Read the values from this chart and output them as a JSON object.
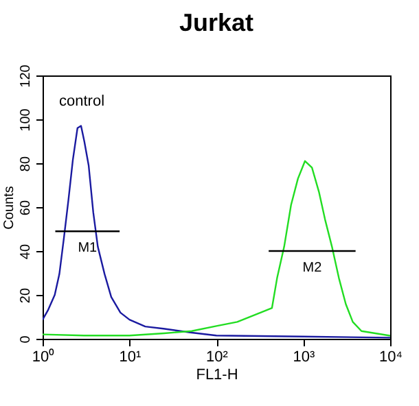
{
  "chart_data": {
    "type": "line",
    "title": "Jurkat",
    "xlabel": "FL1-H",
    "ylabel": "Counts",
    "log": "x",
    "grid": false,
    "xlim": [
      1,
      10000
    ],
    "ylim": [
      0,
      120
    ],
    "xticks": [
      {
        "value": 1,
        "label": "10⁰"
      },
      {
        "value": 10,
        "label": "10¹"
      },
      {
        "value": 100,
        "label": "10²"
      },
      {
        "value": 1000,
        "label": "10³"
      },
      {
        "value": 10000,
        "label": "10⁴"
      }
    ],
    "yticks": [
      0,
      20,
      40,
      60,
      80,
      100,
      120
    ],
    "series": [
      {
        "color": "#1a1aa0",
        "x": [
          1,
          1.15,
          1.38,
          1.56,
          1.76,
          1.98,
          2.23,
          2.52,
          2.77,
          3.02,
          3.39,
          3.83,
          4.32,
          5.17,
          6.17,
          7.87,
          10,
          15.2,
          24.6,
          50,
          100,
          1000,
          10000
        ],
        "values": [
          8.7,
          12.9,
          20,
          29.5,
          46,
          63,
          81.5,
          96,
          97,
          90,
          79,
          57.6,
          42,
          29.5,
          19,
          11.9,
          8.7,
          5.6,
          4.6,
          2.9,
          1.5,
          1,
          0.5
        ]
      },
      {
        "color": "#22dd22",
        "x": [
          1,
          3,
          10,
          25,
          52,
          100,
          174,
          325,
          436,
          500,
          603,
          724,
          869,
          1047,
          1259,
          1514,
          1778,
          2138,
          2570,
          3090,
          3715,
          4677,
          10000
        ],
        "values": [
          2,
          1.5,
          1.5,
          2.5,
          3.5,
          5.8,
          7.7,
          12,
          14,
          27.7,
          42,
          61,
          73,
          81,
          78,
          67,
          54.5,
          42,
          27.7,
          15.8,
          7.7,
          3.5,
          1.4
        ]
      },
      {
        "name": "M1",
        "type": "line",
        "color": "#000000",
        "x": [
          1.4,
          7.7
        ],
        "values": [
          49,
          49
        ]
      },
      {
        "name": "M2",
        "type": "line",
        "color": "#000000",
        "x": [
          400,
          4000
        ],
        "values": [
          40,
          40
        ]
      }
    ],
    "annotations": [
      "control"
    ]
  }
}
